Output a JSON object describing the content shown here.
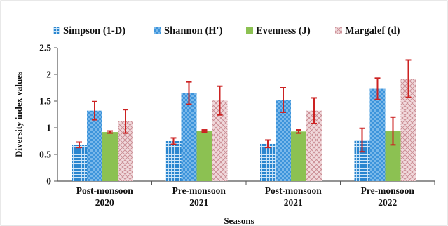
{
  "chart_data": {
    "type": "bar",
    "title": "",
    "xlabel": "Seasons",
    "ylabel": "Diversity index values",
    "ylim": [
      0,
      2.5
    ],
    "yticks": [
      "0",
      "0.5",
      "1",
      "1.5",
      "2",
      "2.5"
    ],
    "ytick_values": [
      0,
      0.5,
      1,
      1.5,
      2,
      2.5
    ],
    "grid": false,
    "legend_position": "top",
    "categories": [
      {
        "line1": "Post-monsoon",
        "line2": "2020"
      },
      {
        "line1": "Pre-monsoon",
        "line2": "2021"
      },
      {
        "line1": "Post-monsoon",
        "line2": "2021"
      },
      {
        "line1": "Pre-monsoon",
        "line2": "2022"
      }
    ],
    "series": [
      {
        "name": "Simpson (1-D)",
        "pattern": "grid",
        "color": "#2f8fd4",
        "values": [
          0.68,
          0.75,
          0.7,
          0.77
        ],
        "errors": [
          0.05,
          0.06,
          0.07,
          0.22
        ]
      },
      {
        "name": "Shannon (H')",
        "pattern": "checker",
        "color": "#4d9fe0",
        "values": [
          1.32,
          1.65,
          1.52,
          1.73
        ],
        "errors": [
          0.17,
          0.21,
          0.23,
          0.2
        ]
      },
      {
        "name": "Evenness (J)",
        "pattern": "solid",
        "color": "#8cc152",
        "values": [
          0.92,
          0.94,
          0.93,
          0.94
        ],
        "errors": [
          0.02,
          0.02,
          0.03,
          0.26
        ]
      },
      {
        "name": "Margalef (d)",
        "pattern": "crosshatch",
        "color": "#e0b8bc",
        "values": [
          1.12,
          1.51,
          1.32,
          1.92
        ],
        "errors": [
          0.22,
          0.27,
          0.24,
          0.35
        ]
      }
    ],
    "error_bar_color": "#cc2222"
  }
}
